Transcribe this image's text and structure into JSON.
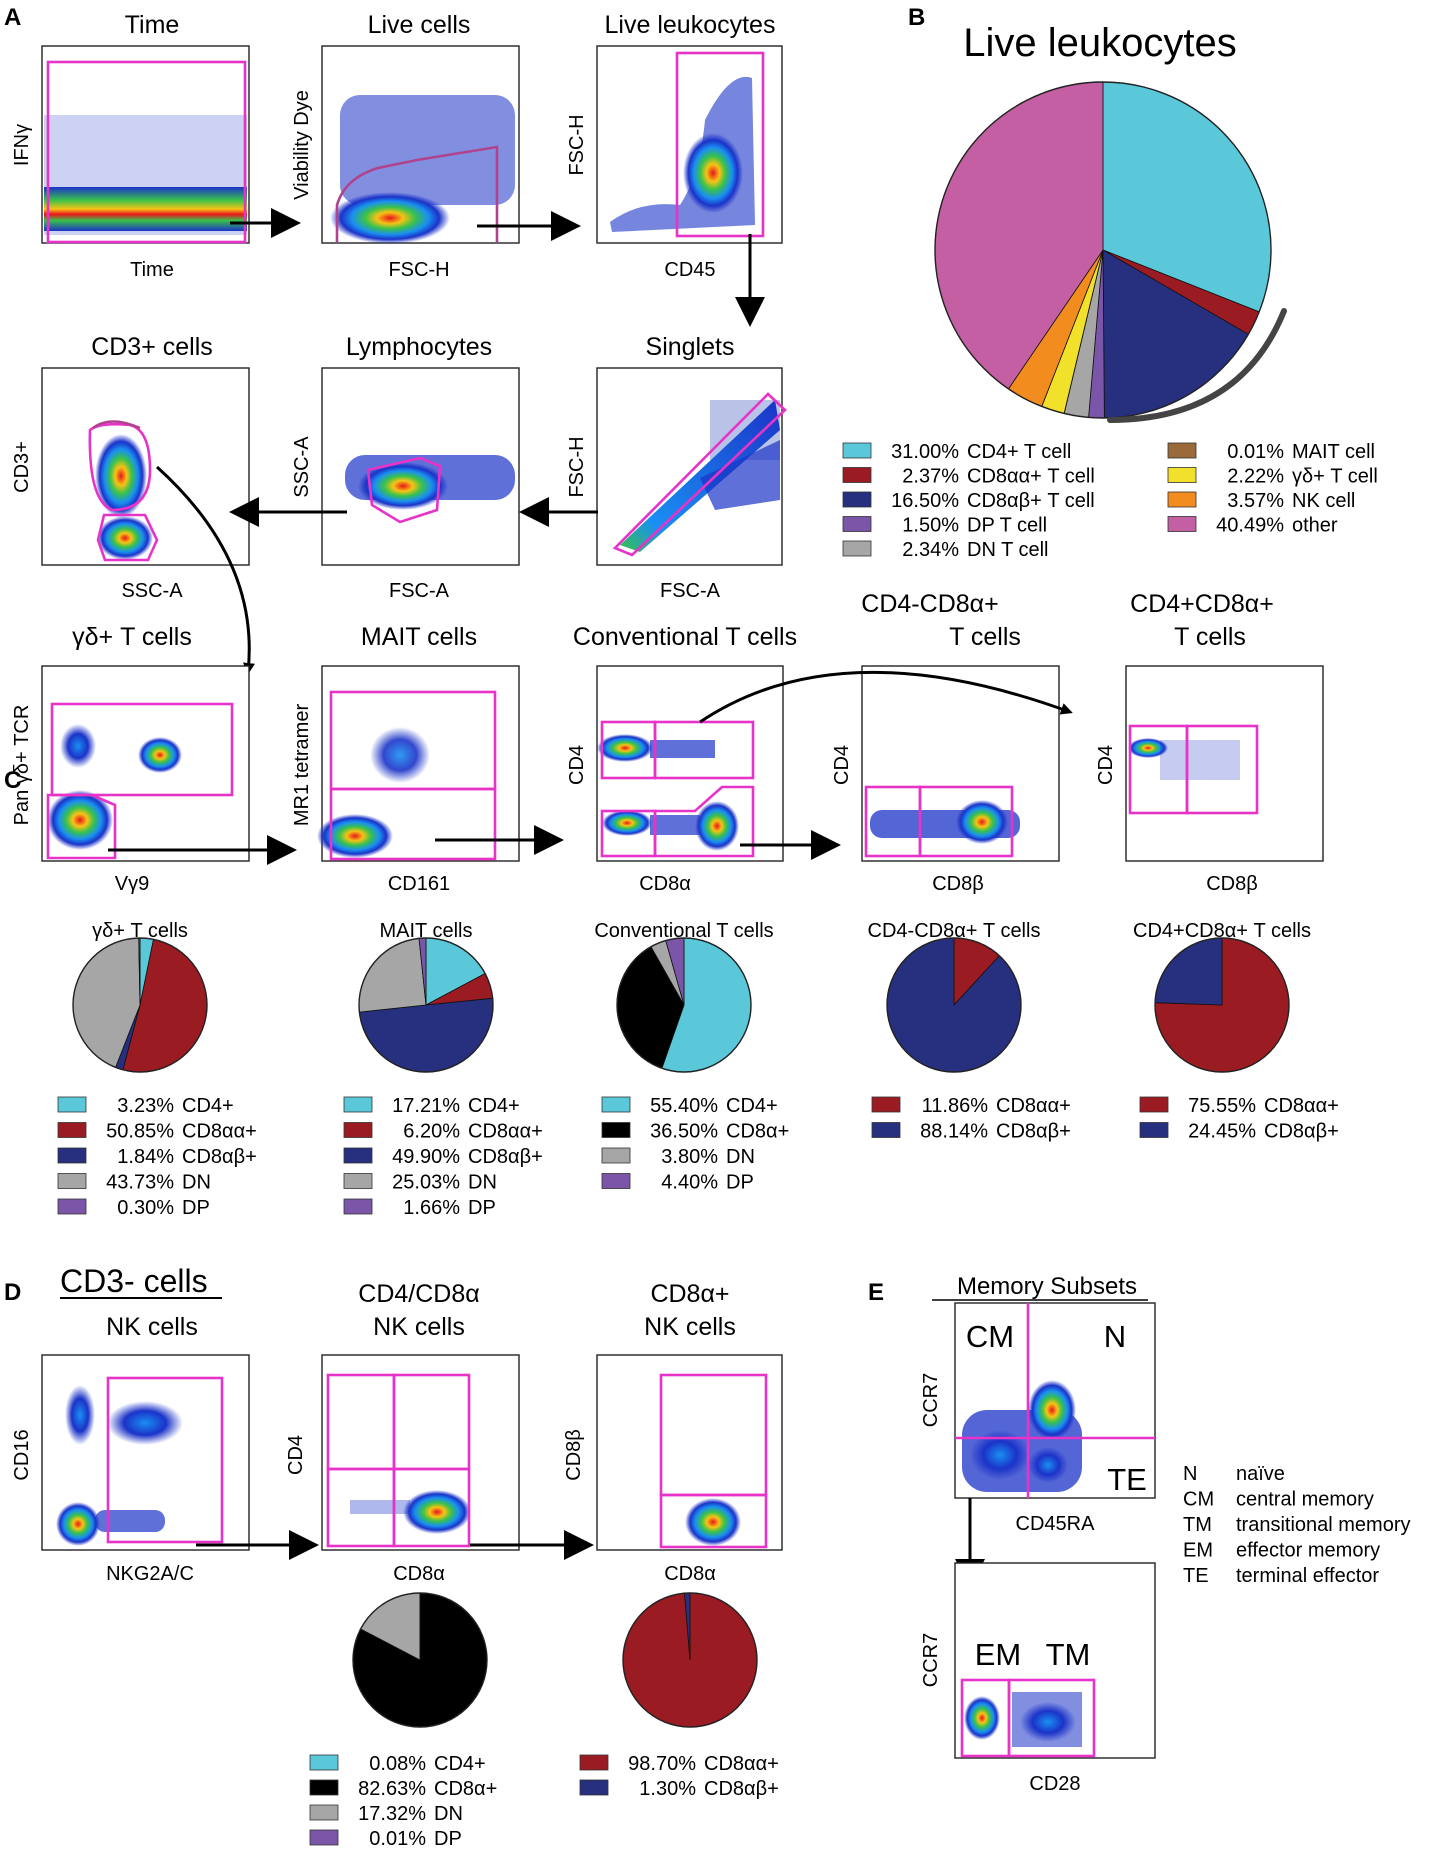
{
  "colors": {
    "cd4": "#5bc8da",
    "cd8aa": "#9b1b23",
    "cd8ab": "#26307f",
    "dp": "#7b55a8",
    "dn": "#a6a6a6",
    "mait": "#9a6a3a",
    "gd": "#f2e12b",
    "nk": "#f28c1e",
    "other": "#c35fa2",
    "cd8a": "#000000",
    "gate": "#e833c8"
  },
  "panels": {
    "A": "A",
    "B": "B",
    "C": "C",
    "D": "D",
    "E": "E"
  },
  "panelA": {
    "plots": [
      {
        "id": "time",
        "title": "Time",
        "xlabel": "Time",
        "ylabel": "IFNγ"
      },
      {
        "id": "live",
        "title": "Live cells",
        "xlabel": "FSC-H",
        "ylabel": "Viability Dye"
      },
      {
        "id": "leuk",
        "title": "Live leukocytes",
        "xlabel": "CD45",
        "ylabel": "FSC-H"
      },
      {
        "id": "cd3",
        "title": "CD3+ cells",
        "xlabel": "SSC-A",
        "ylabel": "CD3+"
      },
      {
        "id": "lymph",
        "title": "Lymphocytes",
        "xlabel": "FSC-A",
        "ylabel": "SSC-A"
      },
      {
        "id": "singlets",
        "title": "Singlets",
        "xlabel": "FSC-A",
        "ylabel": "FSC-H"
      },
      {
        "id": "gd",
        "title": "γδ+ T cells",
        "xlabel": "Vγ9",
        "ylabel": "Pan γδ+ TCR"
      },
      {
        "id": "mait",
        "title": "MAIT cells",
        "xlabel": "CD161",
        "ylabel": "MR1 tetramer"
      },
      {
        "id": "conv",
        "title": "Conventional T cells",
        "xlabel": "CD8α",
        "ylabel": "CD4"
      },
      {
        "id": "cd4n",
        "title": "CD4-CD8α+",
        "title2": "T cells",
        "xlabel": "CD8β",
        "ylabel": "CD4"
      },
      {
        "id": "cd4p",
        "title": "CD4+CD8α+",
        "title2": "T cells",
        "xlabel": "CD8β",
        "ylabel": "CD4"
      }
    ]
  },
  "chart_data": [
    {
      "type": "pie",
      "id": "B",
      "title": "Live leukocytes",
      "categories": [
        "CD4+ T cell",
        "CD8αα+ T cell",
        "CD8αβ+ T cell",
        "DP T cell",
        "DN T cell",
        "MAIT cell",
        "γδ+ T cell",
        "NK cell",
        "other"
      ],
      "labels": [
        "31.00%",
        "2.37%",
        "16.50%",
        "1.50%",
        "2.34%",
        "0.01%",
        "2.22%",
        "3.57%",
        "40.49%"
      ],
      "values": [
        31.0,
        2.37,
        16.5,
        1.5,
        2.34,
        0.01,
        2.22,
        3.57,
        40.49
      ],
      "colors": [
        "#5bc8da",
        "#9b1b23",
        "#26307f",
        "#7b55a8",
        "#a6a6a6",
        "#9a6a3a",
        "#f2e12b",
        "#f28c1e",
        "#c35fa2"
      ]
    },
    {
      "type": "pie",
      "id": "C1",
      "title": "γδ+ T cells",
      "categories": [
        "CD4+",
        "CD8αα+",
        "CD8αβ+",
        "DN",
        "DP"
      ],
      "labels": [
        "3.23%",
        "50.85%",
        "1.84%",
        "43.73%",
        "0.30%"
      ],
      "values": [
        3.23,
        50.85,
        1.84,
        43.73,
        0.3
      ],
      "colors": [
        "#5bc8da",
        "#9b1b23",
        "#26307f",
        "#a6a6a6",
        "#7b55a8"
      ]
    },
    {
      "type": "pie",
      "id": "C2",
      "title": "MAIT cells",
      "categories": [
        "CD4+",
        "CD8αα+",
        "CD8αβ+",
        "DN",
        "DP"
      ],
      "labels": [
        "17.21%",
        "6.20%",
        "49.90%",
        "25.03%",
        "1.66%"
      ],
      "values": [
        17.21,
        6.2,
        49.9,
        25.03,
        1.66
      ],
      "colors": [
        "#5bc8da",
        "#9b1b23",
        "#26307f",
        "#a6a6a6",
        "#7b55a8"
      ]
    },
    {
      "type": "pie",
      "id": "C3",
      "title": "Conventional T cells",
      "categories": [
        "CD4+",
        "CD8α+",
        "DN",
        "DP"
      ],
      "labels": [
        "55.40%",
        "36.50%",
        "3.80%",
        "4.40%"
      ],
      "values": [
        55.4,
        36.5,
        3.8,
        4.4
      ],
      "colors": [
        "#5bc8da",
        "#000000",
        "#a6a6a6",
        "#7b55a8"
      ]
    },
    {
      "type": "pie",
      "id": "C4",
      "title": "CD4-CD8α+ T cells",
      "categories": [
        "CD8αα+",
        "CD8αβ+"
      ],
      "labels": [
        "11.86%",
        "88.14%"
      ],
      "values": [
        11.86,
        88.14
      ],
      "colors": [
        "#9b1b23",
        "#26307f"
      ]
    },
    {
      "type": "pie",
      "id": "C5",
      "title": "CD4+CD8α+ T cells",
      "categories": [
        "CD8αα+",
        "CD8αβ+"
      ],
      "labels": [
        "75.55%",
        "24.45%"
      ],
      "values": [
        75.55,
        24.45
      ],
      "colors": [
        "#9b1b23",
        "#26307f"
      ]
    },
    {
      "type": "pie",
      "id": "D1",
      "title": "",
      "categories": [
        "CD4+",
        "CD8α+",
        "DN",
        "DP"
      ],
      "labels": [
        "0.08%",
        "82.63%",
        "17.32%",
        "0.01%"
      ],
      "values": [
        0.08,
        82.63,
        17.32,
        0.01
      ],
      "colors": [
        "#5bc8da",
        "#000000",
        "#a6a6a6",
        "#7b55a8"
      ]
    },
    {
      "type": "pie",
      "id": "D2",
      "title": "",
      "categories": [
        "CD8αα+",
        "CD8αβ+"
      ],
      "labels": [
        "98.70%",
        "1.30%"
      ],
      "values": [
        98.7,
        1.3
      ],
      "colors": [
        "#9b1b23",
        "#26307f"
      ]
    }
  ],
  "panelD": {
    "heading": "CD3- cells",
    "plots": [
      {
        "id": "nk",
        "title": "NK cells",
        "xlabel": "NKG2A/C",
        "ylabel": "CD16"
      },
      {
        "id": "nkcd4",
        "title": "CD4/CD8α",
        "title2": "NK cells",
        "xlabel": "CD8α",
        "ylabel": "CD4"
      },
      {
        "id": "nkcd8",
        "title": "CD8α+",
        "title2": "NK cells",
        "xlabel": "CD8α",
        "ylabel": "CD8β"
      }
    ]
  },
  "panelE": {
    "heading": "Memory Subsets",
    "plot1": {
      "xlabel": "CD45RA",
      "ylabel": "CCR7",
      "q_cm": "CM",
      "q_n": "N",
      "q_te": "TE"
    },
    "plot2": {
      "xlabel": "CD28",
      "ylabel": "CCR7",
      "q_em": "EM",
      "q_tm": "TM"
    },
    "legend": [
      {
        "abbr": "N",
        "text": "naïve"
      },
      {
        "abbr": "CM",
        "text": "central memory"
      },
      {
        "abbr": "TM",
        "text": "transitional memory"
      },
      {
        "abbr": "EM",
        "text": "effector memory"
      },
      {
        "abbr": "TE",
        "text": "terminal effector"
      }
    ]
  }
}
